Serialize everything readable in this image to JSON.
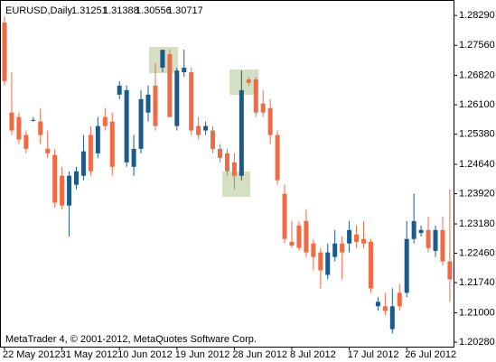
{
  "header": {
    "symbol": "EURUSD,Daily",
    "quote": [
      1.31251,
      1.31388,
      1.30556,
      1.30717
    ]
  },
  "footer": "MetaTrader 4, © 2001-2012, MetaQuotes Software Corp.",
  "chart_data": {
    "type": "candlestick",
    "up_color": "#1c5a8e",
    "down_color": "#f26a43",
    "ylim": [
      1.2017,
      1.2867
    ],
    "yticks": [
      {
        "value": 1.2829,
        "label": "1.28290"
      },
      {
        "value": 1.2756,
        "label": "1.27560"
      },
      {
        "value": 1.2682,
        "label": "1.26820"
      },
      {
        "value": 1.261,
        "label": "1.26100"
      },
      {
        "value": 1.2538,
        "label": "1.25380"
      },
      {
        "value": 1.2464,
        "label": "1.24640"
      },
      {
        "value": 1.2392,
        "label": "1.23920"
      },
      {
        "value": 1.2318,
        "label": "1.23180"
      },
      {
        "value": 1.2246,
        "label": "1.22460"
      },
      {
        "value": 1.2174,
        "label": "1.21740"
      },
      {
        "value": 1.21,
        "label": "1.21000"
      },
      {
        "value": 1.2028,
        "label": "1.20280"
      }
    ],
    "categories": [
      "22 May 2012",
      null,
      null,
      null,
      null,
      null,
      null,
      null,
      "31 May 2012",
      null,
      null,
      null,
      null,
      null,
      null,
      null,
      "10 Jun 2012",
      null,
      null,
      null,
      null,
      null,
      null,
      null,
      "19 Jun 2012",
      null,
      null,
      null,
      null,
      null,
      null,
      null,
      "28 Jun 2012",
      null,
      null,
      null,
      null,
      null,
      null,
      null,
      "8 Jul 2012",
      null,
      null,
      null,
      null,
      null,
      null,
      null,
      "17 Jul 2012",
      null,
      null,
      null,
      null,
      null,
      null,
      null,
      "26 Jul 2012",
      null,
      null,
      null,
      null,
      null,
      null
    ],
    "open": [
      1.2812,
      1.2591,
      1.258,
      1.2536,
      1.2571,
      1.2569,
      1.2502,
      1.2487,
      1.2436,
      1.2363,
      1.2414,
      1.2436,
      1.2536,
      1.2491,
      1.258,
      1.2569,
      1.2635,
      1.2469,
      1.2458,
      1.2502,
      1.2591,
      1.2657,
      1.2701,
      1.2734,
      1.2558,
      1.269,
      1.269,
      1.2558,
      1.2547,
      1.2547,
      1.2502,
      1.2491,
      1.2469,
      1.2436,
      1.2672,
      1.2672,
      1.2613,
      1.2602,
      1.2536,
      1.2392,
      1.2274,
      1.2314,
      1.2325,
      1.227,
      1.2248,
      1.2193,
      1.2237,
      1.227,
      1.227,
      1.2292,
      1.2281,
      1.2274,
      1.2116,
      1.2116,
      1.206,
      1.2149,
      1.2149,
      1.2281,
      1.2296,
      1.2303,
      1.2252,
      1.2303,
      1.2226
    ],
    "high": [
      1.2827,
      1.269,
      1.2591,
      1.2547,
      1.258,
      1.2602,
      1.2547,
      1.2502,
      1.2458,
      1.2447,
      1.2458,
      1.2536,
      1.2558,
      1.258,
      1.2602,
      1.2591,
      1.2668,
      1.2657,
      1.2536,
      1.2646,
      1.2657,
      1.2712,
      1.2745,
      1.2745,
      1.2701,
      1.2745,
      1.2701,
      1.258,
      1.2569,
      1.2558,
      1.2514,
      1.2502,
      1.2491,
      1.2694,
      1.2679,
      1.2679,
      1.2646,
      1.2624,
      1.2547,
      1.2414,
      1.2325,
      1.2325,
      1.2354,
      1.2281,
      1.2259,
      1.227,
      1.2303,
      1.2287,
      1.2325,
      1.2314,
      1.2325,
      1.2281,
      1.2138,
      1.2149,
      1.216,
      1.2171,
      1.2325,
      1.2392,
      1.2314,
      1.2336,
      1.2314,
      1.2336,
      1.2403
    ],
    "low": [
      1.2657,
      1.2536,
      1.2514,
      1.2491,
      1.2569,
      1.2514,
      1.248,
      1.2358,
      1.2354,
      1.2287,
      1.2403,
      1.2425,
      1.2436,
      1.248,
      1.2547,
      1.2436,
      1.2624,
      1.2458,
      1.2436,
      1.2491,
      1.2569,
      1.2547,
      1.269,
      1.258,
      1.2547,
      1.2679,
      1.2536,
      1.2525,
      1.2536,
      1.2491,
      1.2469,
      1.2436,
      1.2403,
      1.2425,
      1.2657,
      1.258,
      1.258,
      1.2514,
      1.2414,
      1.227,
      1.2259,
      1.2252,
      1.2237,
      1.2204,
      1.216,
      1.2182,
      1.2226,
      1.2182,
      1.2248,
      1.2259,
      1.2259,
      1.2149,
      1.2105,
      1.2094,
      1.2049,
      1.2105,
      1.2138,
      1.227,
      1.2287,
      1.2248,
      1.2237,
      1.2215,
      1.2127
    ],
    "close": [
      1.2668,
      1.2547,
      1.2525,
      1.2502,
      1.2573,
      1.2536,
      1.2491,
      1.237,
      1.2363,
      1.2436,
      1.2447,
      1.2496,
      1.2447,
      1.2558,
      1.2558,
      1.2458,
      1.2657,
      1.2646,
      1.2502,
      1.2624,
      1.2635,
      1.2558,
      1.2745,
      1.258,
      1.2694,
      1.2701,
      1.2547,
      1.2536,
      1.2558,
      1.2502,
      1.248,
      1.2447,
      1.2436,
      1.2646,
      1.2664,
      1.2591,
      1.2591,
      1.2536,
      1.2425,
      1.2281,
      1.2265,
      1.2259,
      1.2248,
      1.2237,
      1.2204,
      1.2248,
      1.227,
      1.2248,
      1.2303,
      1.2274,
      1.227,
      1.216,
      1.2127,
      1.2105,
      1.2116,
      1.2116,
      1.2281,
      1.2325,
      1.2303,
      1.2259,
      1.2303,
      1.2226,
      1.2182
    ]
  }
}
